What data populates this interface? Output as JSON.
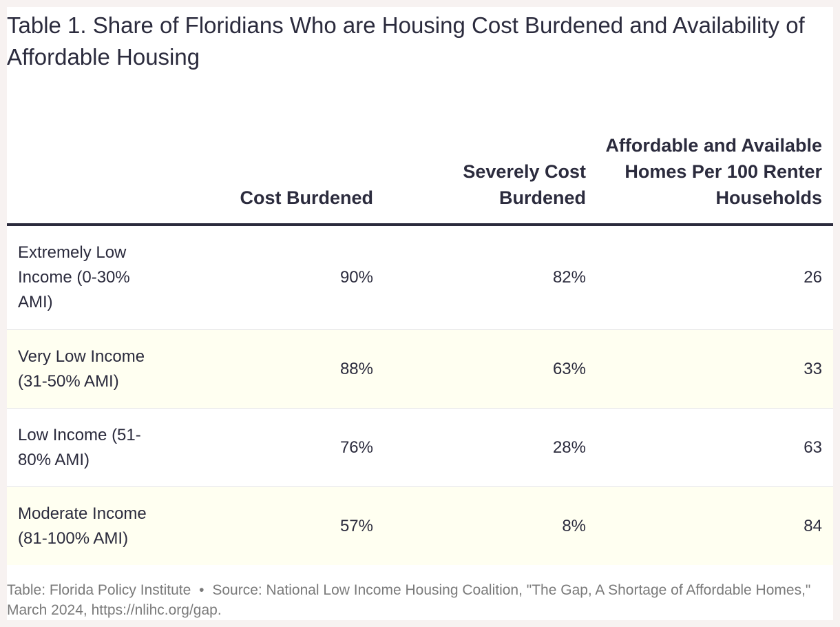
{
  "title": "Table 1. Share of Floridians Who are Housing Cost Burdened and Availability of Affordable Housing",
  "chart_data": {
    "type": "table",
    "title": "Table 1. Share of Floridians Who are Housing Cost Burdened and Availability of Affordable Housing",
    "columns": [
      "",
      "Cost Burdened",
      "Severely Cost Burdened",
      "Affordable and Available Homes Per 100 Renter Households"
    ],
    "rows": [
      {
        "label": "Extremely Low Income (0-30% AMI)",
        "cost_burdened": "90%",
        "severely_cost_burdened": "82%",
        "affordable_homes_per_100": "26"
      },
      {
        "label": "Very Low Income (31-50% AMI)",
        "cost_burdened": "88%",
        "severely_cost_burdened": "63%",
        "affordable_homes_per_100": "33"
      },
      {
        "label": "Low Income (51-80% AMI)",
        "cost_burdened": "76%",
        "severely_cost_burdened": "28%",
        "affordable_homes_per_100": "63"
      },
      {
        "label": "Moderate Income (81-100% AMI)",
        "cost_burdened": "57%",
        "severely_cost_burdened": "8%",
        "affordable_homes_per_100": "84"
      }
    ]
  },
  "footer": {
    "table_credit": "Table: Florida Policy Institute",
    "separator": "•",
    "source": "Source: National Low Income Housing Coalition, \"The Gap, A Shortage of Affordable Homes,\" March 2024, https://nlihc.org/gap."
  },
  "colors": {
    "text": "#2b2b3d",
    "alt_row": "#fffff1",
    "footer_text": "#7a7a7a",
    "page_bg": "#f7f2f1"
  }
}
